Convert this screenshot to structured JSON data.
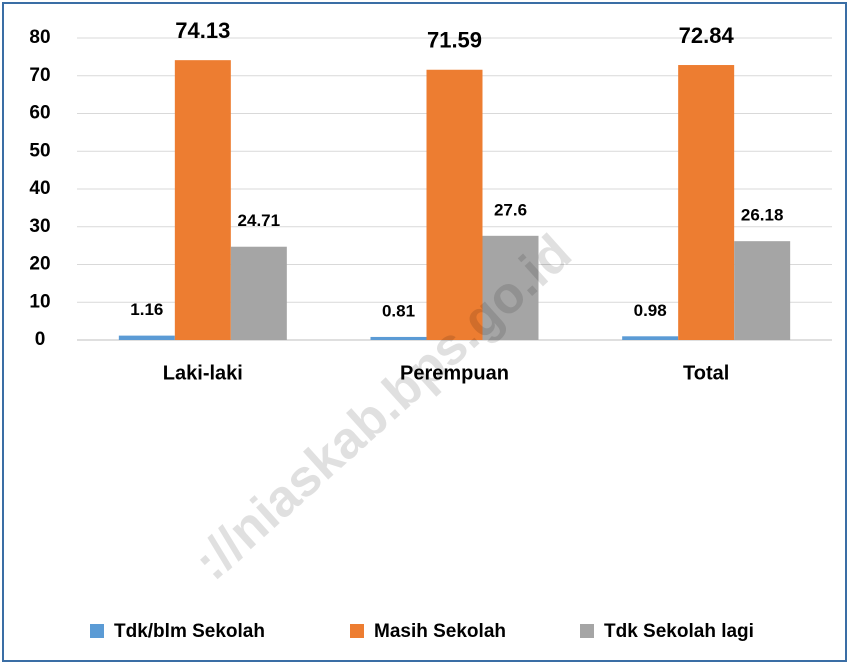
{
  "chart_data": {
    "type": "bar",
    "categories": [
      "Laki-laki",
      "Perempuan",
      "Total"
    ],
    "series": [
      {
        "name": "Tdk/blm Sekolah",
        "color": "#5b9bd5",
        "values": [
          1.16,
          0.81,
          0.98
        ]
      },
      {
        "name": "Masih Sekolah",
        "color": "#ed7d31",
        "values": [
          74.13,
          71.59,
          72.84
        ]
      },
      {
        "name": "Tdk Sekolah lagi",
        "color": "#a5a5a5",
        "values": [
          24.71,
          27.6,
          26.18
        ]
      }
    ],
    "ylim": [
      0,
      80
    ],
    "yticks": [
      0,
      10,
      20,
      30,
      40,
      50,
      60,
      70,
      80
    ],
    "grid": true,
    "legend": "bottom",
    "watermark": "://niaskab.bps.go.id"
  }
}
